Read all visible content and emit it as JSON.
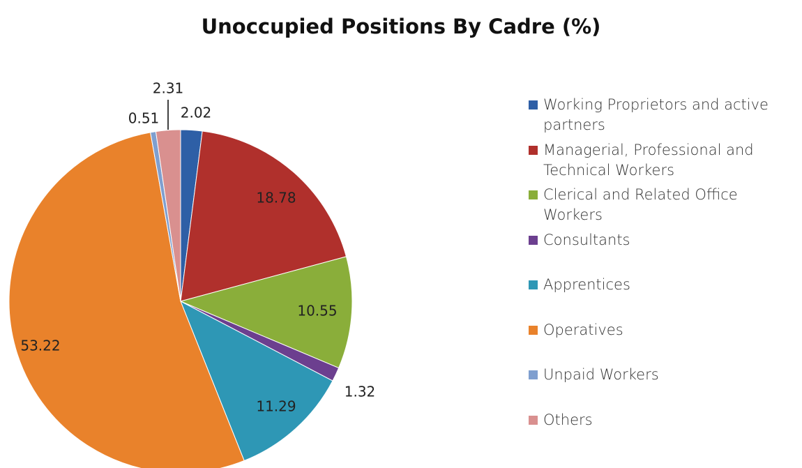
{
  "chart_data": {
    "type": "pie",
    "title": "Unoccupied Positions By Cadre (%)",
    "categories": [
      "Working Proprietors and active partners",
      "Managerial, Professional and Technical Workers",
      "Clerical and Related Office Workers",
      "Consultants",
      "Apprentices",
      "Operatives",
      "Unpaid Workers",
      "Others"
    ],
    "values": [
      2.02,
      18.78,
      10.55,
      1.32,
      11.29,
      53.22,
      0.51,
      2.31
    ],
    "colors": [
      "#2e5fa6",
      "#b0302c",
      "#8aae3a",
      "#6c3f8f",
      "#2e97b5",
      "#e9822b",
      "#7f9fcf",
      "#d9908f"
    ],
    "legend": "right"
  }
}
